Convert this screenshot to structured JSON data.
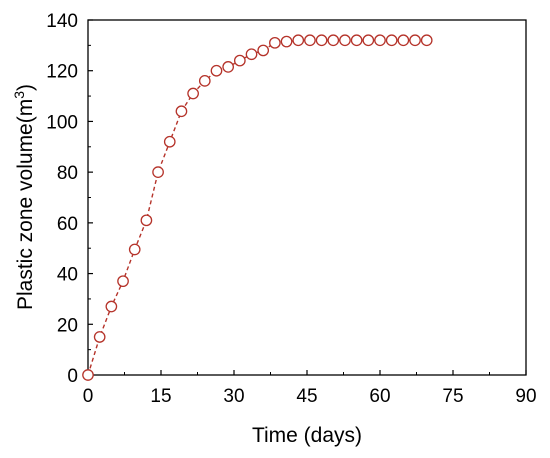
{
  "chart_data": {
    "type": "line",
    "title": "",
    "xlabel": "Time (days)",
    "ylabel_main": "Plastic zone volume(m",
    "ylabel_sup": "3",
    "ylabel_close": ")",
    "xlim": [
      0,
      90
    ],
    "ylim": [
      0,
      140
    ],
    "xticks": [
      0,
      15,
      30,
      45,
      60,
      75,
      90
    ],
    "yticks": [
      0,
      20,
      40,
      60,
      80,
      100,
      120,
      140
    ],
    "grid": false,
    "legend": "none",
    "series": [
      {
        "color": "#b5332a",
        "line_style": "dashed",
        "marker": "open-circle",
        "x": [
          0,
          2.4,
          4.8,
          7.2,
          9.6,
          12,
          14.4,
          16.8,
          19.2,
          21.6,
          24,
          26.4,
          28.8,
          31.2,
          33.6,
          36,
          38.4,
          40.8,
          43.2,
          45.6,
          48,
          50.4,
          52.8,
          55.2,
          57.6,
          60,
          62.4,
          64.8,
          67.2,
          69.6
        ],
        "y": [
          0,
          15,
          27,
          37,
          49.5,
          61,
          80,
          92,
          104,
          111,
          116,
          120,
          121.5,
          124,
          126.5,
          128,
          131,
          131.5,
          132,
          132,
          132,
          132,
          132,
          132,
          132,
          132,
          132,
          132,
          132,
          132
        ]
      }
    ]
  }
}
